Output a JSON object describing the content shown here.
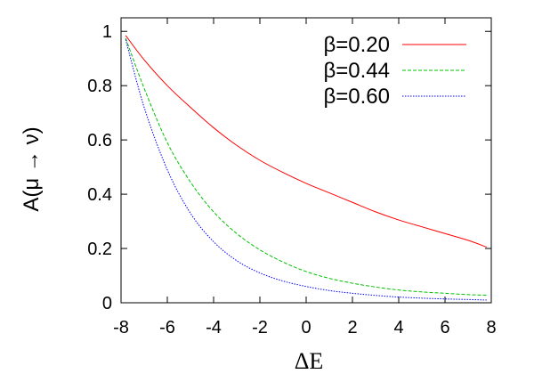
{
  "chart_data": {
    "type": "line",
    "title": "",
    "xlabel": "ΔE",
    "ylabel": "A(μ → ν)",
    "xlim": [
      -8,
      8
    ],
    "ylim": [
      0,
      1.05
    ],
    "x_ticks": [
      -8,
      -6,
      -4,
      -2,
      0,
      2,
      4,
      6,
      8
    ],
    "y_ticks": [
      0,
      0.2,
      0.4,
      0.6,
      0.8,
      1
    ],
    "x_tick_labels": [
      "-8",
      "-6",
      "-4",
      "-2",
      "0",
      "2",
      "4",
      "6",
      "8"
    ],
    "y_tick_labels": [
      "0",
      "0.2",
      "0.4",
      "0.6",
      "0.8",
      "1"
    ],
    "grid": false,
    "legend_position": "top-right",
    "x": [
      -7.8,
      -7,
      -6,
      -5,
      -4,
      -3,
      -2,
      -1,
      0,
      1,
      2,
      3,
      4,
      5,
      6,
      7,
      7.8
    ],
    "series": [
      {
        "name": "β=0.20",
        "color": "#ff0000",
        "dash": "solid",
        "values": [
          0.985,
          0.895,
          0.8,
          0.72,
          0.645,
          0.58,
          0.525,
          0.48,
          0.44,
          0.405,
          0.37,
          0.335,
          0.305,
          0.28,
          0.255,
          0.23,
          0.205
        ]
      },
      {
        "name": "β=0.44",
        "color": "#00c000",
        "dash": "dashed",
        "values": [
          0.975,
          0.79,
          0.59,
          0.445,
          0.335,
          0.255,
          0.195,
          0.15,
          0.115,
          0.09,
          0.072,
          0.058,
          0.047,
          0.04,
          0.035,
          0.03,
          0.028
        ]
      },
      {
        "name": "β=0.60",
        "color": "#0000ff",
        "dash": "dotted",
        "values": [
          0.97,
          0.72,
          0.49,
          0.33,
          0.225,
          0.155,
          0.11,
          0.08,
          0.06,
          0.045,
          0.035,
          0.027,
          0.021,
          0.017,
          0.014,
          0.012,
          0.01
        ]
      }
    ]
  }
}
